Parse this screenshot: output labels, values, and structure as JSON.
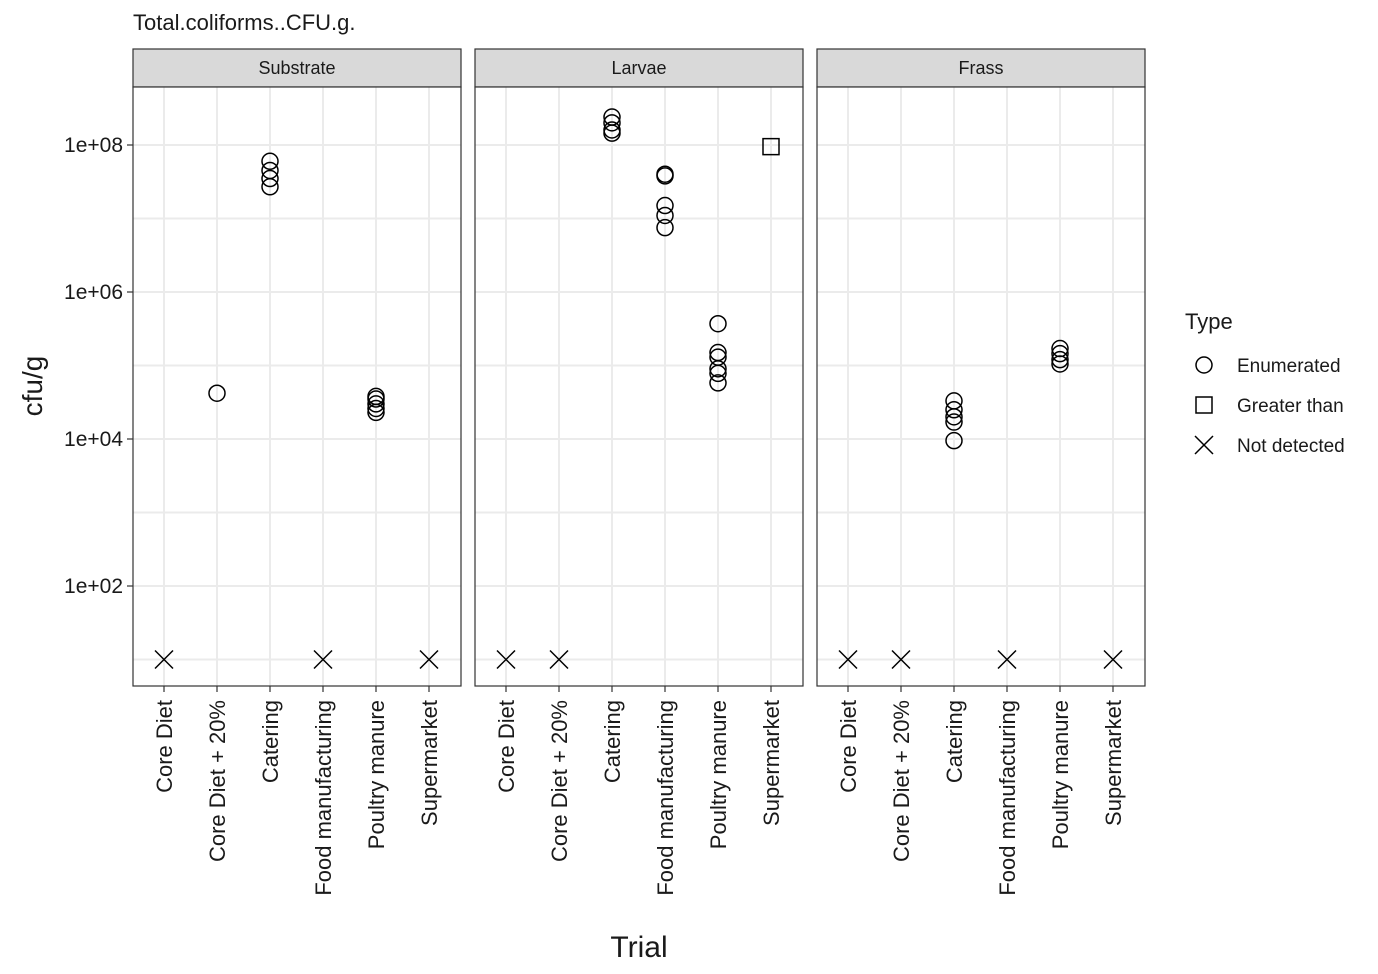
{
  "chart_data": {
    "type": "scatter",
    "title": "Total.coliforms..CFU.g.",
    "xlabel": "Trial",
    "ylabel": "cfu/g",
    "y_scale": "log10",
    "ylim": [
      1,
      1000000000
    ],
    "y_ticks": [
      100,
      10000,
      1000000,
      100000000
    ],
    "y_tick_labels": [
      "1e+02",
      "1e+04",
      "1e+06",
      "1e+08"
    ],
    "categories": [
      "Core Diet",
      "Core Diet + 20%",
      "Catering",
      "Food manufacturing",
      "Poultry manure",
      "Supermarket"
    ],
    "not_detected_plot_value": 10,
    "grid": true,
    "legend": {
      "title": "Type",
      "placement": "right",
      "entries": [
        {
          "label": "Enumerated",
          "shape": "circle"
        },
        {
          "label": "Greater than",
          "shape": "square"
        },
        {
          "label": "Not detected",
          "shape": "x"
        }
      ]
    },
    "panels": [
      {
        "name": "Substrate",
        "points": [
          {
            "category": "Core Diet",
            "value": 10,
            "type": "Not detected"
          },
          {
            "category": "Core Diet + 20%",
            "value": 42000,
            "type": "Enumerated"
          },
          {
            "category": "Catering",
            "value": 60000000,
            "type": "Enumerated"
          },
          {
            "category": "Catering",
            "value": 45000000,
            "type": "Enumerated"
          },
          {
            "category": "Catering",
            "value": 35000000,
            "type": "Enumerated"
          },
          {
            "category": "Catering",
            "value": 27000000,
            "type": "Enumerated"
          },
          {
            "category": "Food manufacturing",
            "value": 10,
            "type": "Not detected"
          },
          {
            "category": "Poultry manure",
            "value": 38000,
            "type": "Enumerated"
          },
          {
            "category": "Poultry manure",
            "value": 35000,
            "type": "Enumerated"
          },
          {
            "category": "Poultry manure",
            "value": 30000,
            "type": "Enumerated"
          },
          {
            "category": "Poultry manure",
            "value": 26000,
            "type": "Enumerated"
          },
          {
            "category": "Poultry manure",
            "value": 23000,
            "type": "Enumerated"
          },
          {
            "category": "Supermarket",
            "value": 10,
            "type": "Not detected"
          }
        ]
      },
      {
        "name": "Larvae",
        "points": [
          {
            "category": "Core Diet",
            "value": 10,
            "type": "Not detected"
          },
          {
            "category": "Core Diet + 20%",
            "value": 10,
            "type": "Not detected"
          },
          {
            "category": "Catering",
            "value": 240000000,
            "type": "Enumerated"
          },
          {
            "category": "Catering",
            "value": 200000000,
            "type": "Enumerated"
          },
          {
            "category": "Catering",
            "value": 160000000,
            "type": "Enumerated"
          },
          {
            "category": "Catering",
            "value": 145000000,
            "type": "Enumerated"
          },
          {
            "category": "Food manufacturing",
            "value": 40000000,
            "type": "Enumerated"
          },
          {
            "category": "Food manufacturing",
            "value": 38000000,
            "type": "Enumerated"
          },
          {
            "category": "Food manufacturing",
            "value": 15000000,
            "type": "Enumerated"
          },
          {
            "category": "Food manufacturing",
            "value": 11000000,
            "type": "Enumerated"
          },
          {
            "category": "Food manufacturing",
            "value": 7500000,
            "type": "Enumerated"
          },
          {
            "category": "Poultry manure",
            "value": 370000,
            "type": "Enumerated"
          },
          {
            "category": "Poultry manure",
            "value": 150000,
            "type": "Enumerated"
          },
          {
            "category": "Poultry manure",
            "value": 130000,
            "type": "Enumerated"
          },
          {
            "category": "Poultry manure",
            "value": 90000,
            "type": "Enumerated"
          },
          {
            "category": "Poultry manure",
            "value": 78000,
            "type": "Enumerated"
          },
          {
            "category": "Poultry manure",
            "value": 58000,
            "type": "Enumerated"
          },
          {
            "category": "Supermarket",
            "value": 95000000,
            "type": "Greater than"
          }
        ]
      },
      {
        "name": "Frass",
        "points": [
          {
            "category": "Core Diet",
            "value": 10,
            "type": "Not detected"
          },
          {
            "category": "Core Diet + 20%",
            "value": 10,
            "type": "Not detected"
          },
          {
            "category": "Catering",
            "value": 33000,
            "type": "Enumerated"
          },
          {
            "category": "Catering",
            "value": 25000,
            "type": "Enumerated"
          },
          {
            "category": "Catering",
            "value": 20000,
            "type": "Enumerated"
          },
          {
            "category": "Catering",
            "value": 17000,
            "type": "Enumerated"
          },
          {
            "category": "Catering",
            "value": 9500,
            "type": "Enumerated"
          },
          {
            "category": "Food manufacturing",
            "value": 10,
            "type": "Not detected"
          },
          {
            "category": "Poultry manure",
            "value": 170000,
            "type": "Enumerated"
          },
          {
            "category": "Poultry manure",
            "value": 145000,
            "type": "Enumerated"
          },
          {
            "category": "Poultry manure",
            "value": 120000,
            "type": "Enumerated"
          },
          {
            "category": "Poultry manure",
            "value": 105000,
            "type": "Enumerated"
          },
          {
            "category": "Supermarket",
            "value": 10,
            "type": "Not detected"
          }
        ]
      }
    ]
  }
}
